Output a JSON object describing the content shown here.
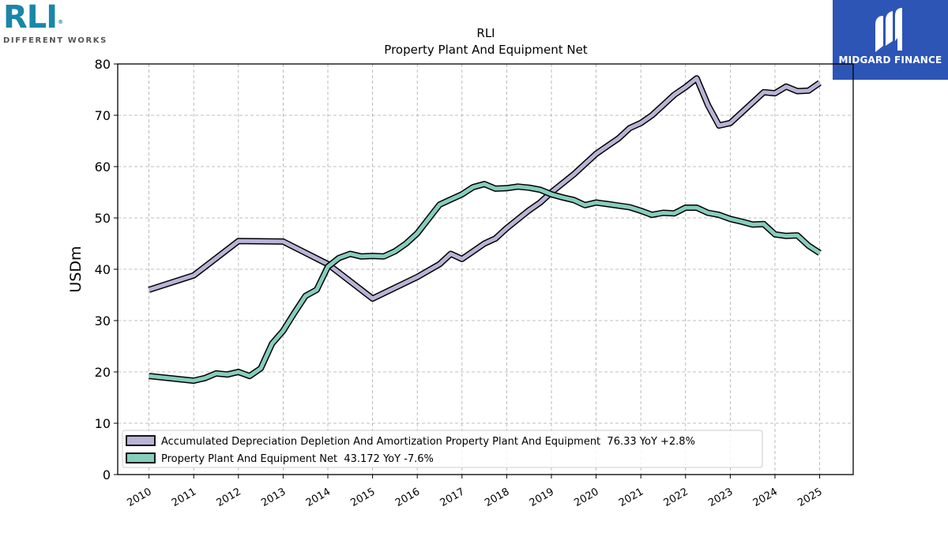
{
  "logos": {
    "left": {
      "brand": "RLI",
      "registered": "®",
      "tagline": "DIFFERENT WORKS"
    },
    "right": {
      "name": "MIDGARD FINANCE",
      "bg_color": "#2d55b6"
    }
  },
  "chart_data": {
    "type": "line",
    "title": "RLI",
    "subtitle": "Property Plant And Equipment Net",
    "ylabel": "USDm",
    "xlabel": "",
    "ylim": [
      0,
      80
    ],
    "xlim": [
      2009.3,
      2025.75
    ],
    "yticks": [
      0,
      10,
      20,
      30,
      40,
      50,
      60,
      70,
      80
    ],
    "xticks": [
      2010,
      2011,
      2012,
      2013,
      2014,
      2015,
      2016,
      2017,
      2018,
      2019,
      2020,
      2021,
      2022,
      2023,
      2024,
      2025
    ],
    "grid": true,
    "legend_position": "lower-left",
    "series": [
      {
        "name": "Accumulated Depreciation Depletion And Amortization Property Plant And Equipment  76.33 YoY +2.8%",
        "color": "#b9b4d6",
        "points": [
          [
            2010.0,
            36.0
          ],
          [
            2011.0,
            38.8
          ],
          [
            2012.0,
            45.5
          ],
          [
            2013.0,
            45.4
          ],
          [
            2014.0,
            41.0
          ],
          [
            2015.0,
            34.3
          ],
          [
            2016.0,
            38.5
          ],
          [
            2016.5,
            41.0
          ],
          [
            2016.75,
            43.0
          ],
          [
            2017.0,
            42.0
          ],
          [
            2017.5,
            45.0
          ],
          [
            2017.75,
            46.0
          ],
          [
            2018.0,
            48.0
          ],
          [
            2018.5,
            51.5
          ],
          [
            2018.75,
            53.0
          ],
          [
            2019.0,
            55.0
          ],
          [
            2019.5,
            58.5
          ],
          [
            2019.75,
            60.5
          ],
          [
            2020.0,
            62.5
          ],
          [
            2020.25,
            64.0
          ],
          [
            2020.5,
            65.5
          ],
          [
            2020.75,
            67.5
          ],
          [
            2021.0,
            68.5
          ],
          [
            2021.25,
            70.0
          ],
          [
            2021.5,
            72.0
          ],
          [
            2021.75,
            74.0
          ],
          [
            2022.0,
            75.5
          ],
          [
            2022.25,
            77.2
          ],
          [
            2022.5,
            72.0
          ],
          [
            2022.75,
            68.0
          ],
          [
            2023.0,
            68.5
          ],
          [
            2023.25,
            70.5
          ],
          [
            2023.5,
            72.5
          ],
          [
            2023.75,
            74.5
          ],
          [
            2024.0,
            74.3
          ],
          [
            2024.25,
            75.6
          ],
          [
            2024.5,
            74.7
          ],
          [
            2024.75,
            74.8
          ],
          [
            2025.0,
            76.33
          ]
        ]
      },
      {
        "name": "Property Plant And Equipment Net  43.172 YoY -7.6%",
        "color": "#86cdbd",
        "points": [
          [
            2010.0,
            19.2
          ],
          [
            2011.0,
            18.3
          ],
          [
            2011.25,
            18.8
          ],
          [
            2011.5,
            19.7
          ],
          [
            2011.75,
            19.5
          ],
          [
            2012.0,
            20.0
          ],
          [
            2012.25,
            19.2
          ],
          [
            2012.5,
            20.7
          ],
          [
            2012.75,
            25.5
          ],
          [
            2013.0,
            28.0
          ],
          [
            2013.25,
            31.5
          ],
          [
            2013.5,
            34.8
          ],
          [
            2013.75,
            36.0
          ],
          [
            2014.0,
            40.5
          ],
          [
            2014.25,
            42.2
          ],
          [
            2014.5,
            43.0
          ],
          [
            2014.75,
            42.5
          ],
          [
            2015.0,
            42.6
          ],
          [
            2015.25,
            42.5
          ],
          [
            2015.5,
            43.5
          ],
          [
            2015.75,
            45.0
          ],
          [
            2016.0,
            47.0
          ],
          [
            2016.25,
            49.8
          ],
          [
            2016.5,
            52.6
          ],
          [
            2016.75,
            53.6
          ],
          [
            2017.0,
            54.6
          ],
          [
            2017.25,
            56.0
          ],
          [
            2017.5,
            56.6
          ],
          [
            2017.75,
            55.7
          ],
          [
            2018.0,
            55.8
          ],
          [
            2018.25,
            56.1
          ],
          [
            2018.5,
            55.9
          ],
          [
            2018.75,
            55.5
          ],
          [
            2019.0,
            54.6
          ],
          [
            2019.25,
            54.0
          ],
          [
            2019.5,
            53.5
          ],
          [
            2019.75,
            52.5
          ],
          [
            2020.0,
            53.0
          ],
          [
            2020.25,
            52.7
          ],
          [
            2020.5,
            52.4
          ],
          [
            2020.75,
            52.1
          ],
          [
            2021.0,
            51.4
          ],
          [
            2021.25,
            50.6
          ],
          [
            2021.5,
            51.0
          ],
          [
            2021.75,
            50.9
          ],
          [
            2022.0,
            52.0
          ],
          [
            2022.25,
            52.0
          ],
          [
            2022.5,
            51.0
          ],
          [
            2022.75,
            50.6
          ],
          [
            2023.0,
            49.8
          ],
          [
            2023.25,
            49.3
          ],
          [
            2023.5,
            48.7
          ],
          [
            2023.75,
            48.8
          ],
          [
            2024.0,
            46.8
          ],
          [
            2024.25,
            46.5
          ],
          [
            2024.5,
            46.6
          ],
          [
            2024.75,
            44.6
          ],
          [
            2025.0,
            43.172
          ]
        ]
      }
    ]
  }
}
